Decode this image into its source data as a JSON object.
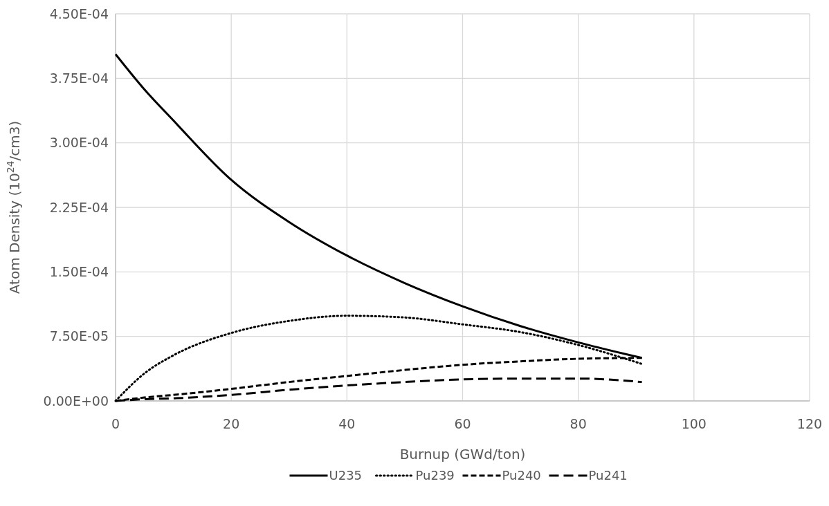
{
  "chart_data": {
    "type": "line",
    "xlabel": "Burnup (GWd/ton)",
    "ylabel": "Atom Density (10$^{24}$/cm3)",
    "xlim": [
      0,
      120
    ],
    "xticks": [
      0,
      20,
      40,
      60,
      80,
      100,
      120
    ],
    "ylim": [
      0,
      0.00045
    ],
    "yticks": [
      {
        "value": 0,
        "label": "0.00E+00"
      },
      {
        "value": 7.5e-05,
        "label": "7.50E-05"
      },
      {
        "value": 0.00015,
        "label": "1.50E-04"
      },
      {
        "value": 0.000225,
        "label": "2.25E-04"
      },
      {
        "value": 0.0003,
        "label": "3.00E-04"
      },
      {
        "value": 0.000375,
        "label": "3.75E-04"
      },
      {
        "value": 0.00045,
        "label": "4.50E-04"
      }
    ],
    "grid": true,
    "legend": "bottom",
    "x": [
      0,
      5,
      10,
      20,
      30,
      40,
      50,
      60,
      70,
      80,
      91
    ],
    "series": [
      {
        "name": "U235",
        "color": "#000000",
        "line_style": "solid",
        "values": [
          0.000403,
          0.000362,
          0.000326,
          0.000257,
          0.000208,
          0.000169,
          0.000137,
          0.00011,
          8.7e-05,
          6.8e-05,
          5e-05
        ]
      },
      {
        "name": "Pu239",
        "color": "#000000",
        "line_style": "dotted",
        "values": [
          0,
          3.2e-05,
          5.3e-05,
          7.9e-05,
          9.3e-05,
          9.9e-05,
          9.7e-05,
          8.9e-05,
          8e-05,
          6.5e-05,
          4.3e-05
        ]
      },
      {
        "name": "Pu240",
        "color": "#000000",
        "line_style": "dashed",
        "values": [
          0,
          4e-06,
          7e-06,
          1.4e-05,
          2.2e-05,
          2.9e-05,
          3.6e-05,
          4.2e-05,
          4.6e-05,
          4.9e-05,
          5e-05
        ]
      },
      {
        "name": "Pu241",
        "color": "#000000",
        "line_style": "longdash",
        "values": [
          0,
          2e-06,
          3e-06,
          7e-06,
          1.3e-05,
          1.8e-05,
          2.2e-05,
          2.5e-05,
          2.6e-05,
          2.6e-05,
          2.2e-05
        ]
      }
    ]
  }
}
